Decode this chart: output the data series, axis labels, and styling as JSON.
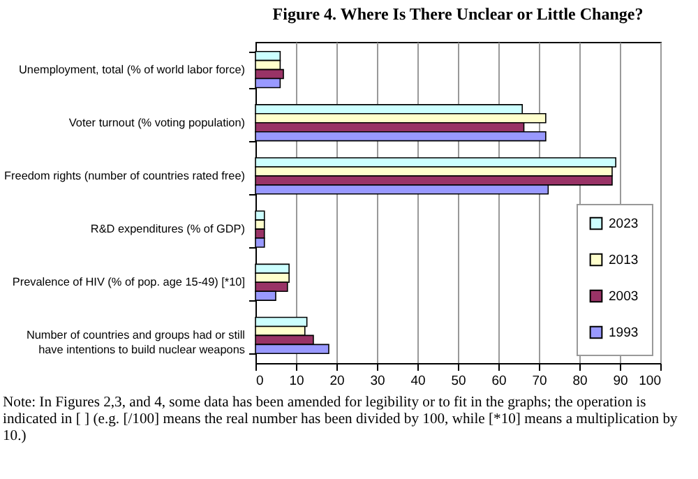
{
  "chart_data": {
    "type": "bar",
    "orientation": "horizontal",
    "title": "Figure 4. Where Is There Unclear or Little Change?",
    "categories": [
      "Unemployment, total (% of world labor force)",
      "Voter turnout (% voting population)",
      "Freedom rights (number of countries rated free)",
      "R&D expenditures (% of GDP)",
      "Prevalence of HIV (% of pop. age 15-49) [*10]",
      "Number of countries and groups had or still have intentions to build nuclear weapons"
    ],
    "series": [
      {
        "name": "2023",
        "color": "#ccffff",
        "values": [
          6.1,
          65.9,
          89,
          2.2,
          8.3,
          12.7
        ]
      },
      {
        "name": "2013",
        "color": "#ffffcc",
        "values": [
          6.1,
          71.7,
          88.1,
          2.2,
          8.3,
          12.2
        ]
      },
      {
        "name": "2003",
        "color": "#993366",
        "values": [
          6.9,
          66.3,
          88.1,
          2.2,
          7.9,
          14.3
        ]
      },
      {
        "name": "1993",
        "color": "#9999ff",
        "values": [
          6.1,
          71.7,
          72.3,
          2.2,
          5,
          18.1
        ]
      }
    ],
    "xlim": [
      0,
      100
    ],
    "xticks": [
      0,
      10,
      20,
      30,
      40,
      50,
      60,
      70,
      80,
      90,
      100
    ],
    "grid": "x",
    "legend": "bottom right",
    "annotations": [
      "Note: In Figures 2,3, and 4, some data has been amended for legibility or to fit in the graphs; the operation is indicated in [ ] (e.g. [/100] means the real number has been divided by 100, while [*10] means a multiplication by 10.)"
    ]
  }
}
